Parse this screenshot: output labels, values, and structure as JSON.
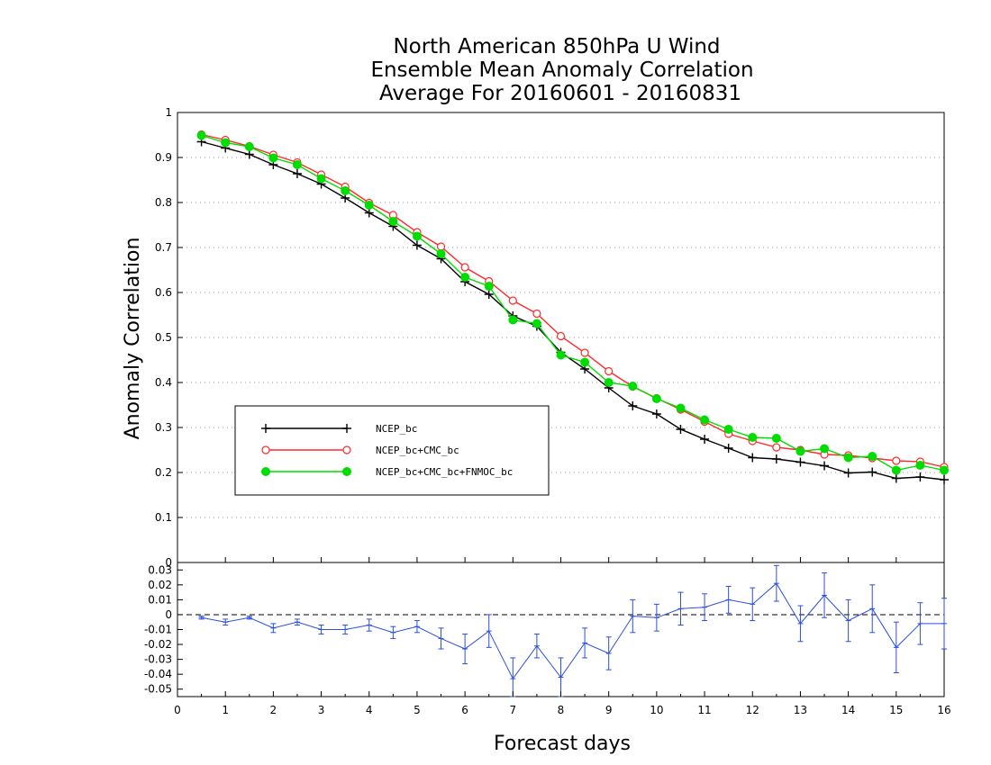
{
  "chart_data": {
    "type": "line",
    "title_lines": [
      "North American 850hPa U Wind",
      "Ensemble Mean Anomaly Correlation",
      "Average For 20160601 - 20160831"
    ],
    "xlabel": "Forecast days",
    "ylabel": "Anomaly Correlation",
    "xlim": [
      0,
      16
    ],
    "x_ticks": [
      "0",
      "1",
      "2",
      "3",
      "4",
      "5",
      "6",
      "7",
      "8",
      "9",
      "10",
      "11",
      "12",
      "13",
      "14",
      "15",
      "16"
    ],
    "main_panel": {
      "ylim": [
        0,
        1
      ],
      "y_ticks": [
        "0",
        "0.1",
        "0.2",
        "0.3",
        "0.4",
        "0.5",
        "0.6",
        "0.7",
        "0.8",
        "0.9",
        "1"
      ],
      "grid": "dotted-horizontal",
      "x": [
        0.5,
        1,
        1.5,
        2,
        2.5,
        3,
        3.5,
        4,
        4.5,
        5,
        5.5,
        6,
        6.5,
        7,
        7.5,
        8,
        8.5,
        9,
        9.5,
        10,
        10.5,
        11,
        11.5,
        12,
        12.5,
        13,
        13.5,
        14,
        14.5,
        15,
        15.5,
        16
      ],
      "series": [
        {
          "name": "NCEP_bc",
          "color": "#000000",
          "marker": "plus",
          "values": [
            0.935,
            0.921,
            0.907,
            0.884,
            0.864,
            0.841,
            0.81,
            0.777,
            0.747,
            0.705,
            0.675,
            0.624,
            0.596,
            0.548,
            0.525,
            0.467,
            0.43,
            0.388,
            0.348,
            0.33,
            0.296,
            0.274,
            0.254,
            0.233,
            0.23,
            0.223,
            0.215,
            0.199,
            0.201,
            0.187,
            0.19,
            0.184
          ]
        },
        {
          "name": "NCEP_bc+CMC_bc",
          "color": "#ff2a2a",
          "marker": "open-circle",
          "values": [
            0.951,
            0.939,
            0.925,
            0.906,
            0.889,
            0.862,
            0.835,
            0.799,
            0.772,
            0.734,
            0.702,
            0.656,
            0.625,
            0.582,
            0.553,
            0.503,
            0.466,
            0.425,
            0.391,
            0.365,
            0.34,
            0.313,
            0.286,
            0.27,
            0.256,
            0.25,
            0.24,
            0.238,
            0.232,
            0.226,
            0.224,
            0.212
          ]
        },
        {
          "name": "NCEP_bc+CMC_bc+FNMOC_bc",
          "color": "#00dd00",
          "marker": "filled-circle",
          "values": [
            0.949,
            0.933,
            0.924,
            0.899,
            0.884,
            0.853,
            0.826,
            0.794,
            0.758,
            0.725,
            0.686,
            0.634,
            0.614,
            0.539,
            0.531,
            0.461,
            0.445,
            0.4,
            0.392,
            0.364,
            0.343,
            0.317,
            0.296,
            0.278,
            0.276,
            0.247,
            0.253,
            0.233,
            0.236,
            0.205,
            0.216,
            0.205
          ]
        }
      ],
      "legend_position": "lower-left"
    },
    "diff_panel": {
      "ylim": [
        -0.055,
        0.035
      ],
      "y_ticks": [
        "0.03",
        "0.02",
        "0.01",
        "0",
        "-0.01",
        "-0.02",
        "-0.03",
        "-0.04",
        "-0.05"
      ],
      "color": "#2a4fdf",
      "x": [
        0.5,
        1,
        1.5,
        2,
        2.5,
        3,
        3.5,
        4,
        4.5,
        5,
        5.5,
        6,
        6.5,
        7,
        7.5,
        8,
        8.5,
        9,
        9.5,
        10,
        10.5,
        11,
        11.5,
        12,
        12.5,
        13,
        13.5,
        14,
        14.5,
        15,
        15.5,
        16
      ],
      "values": [
        -0.002,
        -0.005,
        -0.002,
        -0.009,
        -0.005,
        -0.01,
        -0.01,
        -0.007,
        -0.012,
        -0.008,
        -0.016,
        -0.023,
        -0.011,
        -0.043,
        -0.021,
        -0.042,
        -0.019,
        -0.026,
        -0.001,
        -0.002,
        0.004,
        0.005,
        0.01,
        0.007,
        0.021,
        -0.006,
        0.013,
        -0.004,
        0.004,
        -0.022,
        -0.006,
        -0.006
      ],
      "error": [
        0.001,
        0.002,
        0.001,
        0.003,
        0.002,
        0.003,
        0.003,
        0.004,
        0.004,
        0.004,
        0.007,
        0.01,
        0.011,
        0.014,
        0.008,
        0.013,
        0.01,
        0.011,
        0.011,
        0.009,
        0.011,
        0.009,
        0.009,
        0.011,
        0.012,
        0.012,
        0.015,
        0.014,
        0.016,
        0.017,
        0.014,
        0.017
      ]
    }
  }
}
